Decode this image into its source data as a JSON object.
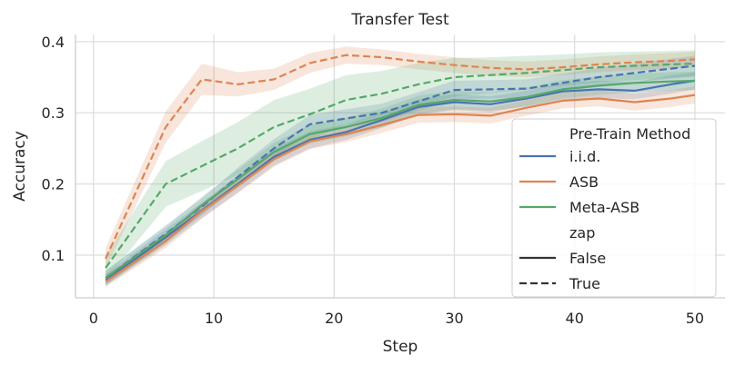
{
  "chart_data": {
    "type": "line",
    "title": "Transfer Test",
    "xlabel": "Step",
    "ylabel": "Accuracy",
    "xlim": [
      -1.5,
      52.5
    ],
    "ylim": [
      0.04,
      0.41
    ],
    "xticks": [
      0,
      10,
      20,
      30,
      40,
      50
    ],
    "yticks": [
      0.1,
      0.2,
      0.3,
      0.4
    ],
    "xtick_labels": [
      "0",
      "10",
      "20",
      "30",
      "40",
      "50"
    ],
    "ytick_labels": [
      "0.1",
      "0.2",
      "0.3",
      "0.4"
    ],
    "grid": true,
    "legend_placement": "center-right",
    "legend": {
      "hue_title": "Pre-Train Method",
      "style_title": "zap",
      "hue_entries": [
        "i.i.d.",
        "ASB",
        "Meta-ASB"
      ],
      "style_entries": [
        "False",
        "True"
      ]
    },
    "x": [
      1,
      6,
      9,
      12,
      15,
      18,
      21,
      24,
      27,
      30,
      33,
      36,
      39,
      42,
      45,
      48,
      50
    ],
    "series": [
      {
        "name": "i.i.d.",
        "zap": "False",
        "color": "#4c72b0",
        "dash": false,
        "values": [
          0.065,
          0.125,
          0.163,
          0.2,
          0.238,
          0.262,
          0.273,
          0.29,
          0.308,
          0.315,
          0.312,
          0.32,
          0.33,
          0.333,
          0.331,
          0.34,
          0.345
        ],
        "lower": [
          0.057,
          0.114,
          0.152,
          0.188,
          0.226,
          0.25,
          0.262,
          0.279,
          0.297,
          0.304,
          0.301,
          0.309,
          0.318,
          0.321,
          0.319,
          0.327,
          0.333
        ],
        "upper": [
          0.073,
          0.136,
          0.174,
          0.212,
          0.25,
          0.274,
          0.284,
          0.301,
          0.319,
          0.326,
          0.323,
          0.331,
          0.342,
          0.345,
          0.343,
          0.353,
          0.357
        ]
      },
      {
        "name": "i.i.d.",
        "zap": "True",
        "color": "#4c72b0",
        "dash": true,
        "values": [
          0.068,
          0.13,
          0.168,
          0.21,
          0.25,
          0.284,
          0.292,
          0.3,
          0.316,
          0.332,
          0.333,
          0.334,
          0.342,
          0.35,
          0.356,
          0.362,
          0.366
        ],
        "lower": [
          0.058,
          0.118,
          0.156,
          0.197,
          0.237,
          0.271,
          0.279,
          0.287,
          0.303,
          0.319,
          0.32,
          0.321,
          0.329,
          0.337,
          0.343,
          0.348,
          0.352
        ],
        "upper": [
          0.078,
          0.142,
          0.18,
          0.223,
          0.263,
          0.297,
          0.305,
          0.313,
          0.329,
          0.345,
          0.346,
          0.347,
          0.355,
          0.363,
          0.369,
          0.376,
          0.38
        ]
      },
      {
        "name": "ASB",
        "zap": "False",
        "color": "#dd8452",
        "dash": false,
        "values": [
          0.063,
          0.12,
          0.162,
          0.198,
          0.235,
          0.26,
          0.27,
          0.283,
          0.297,
          0.298,
          0.296,
          0.307,
          0.317,
          0.32,
          0.315,
          0.32,
          0.325
        ],
        "lower": [
          0.055,
          0.11,
          0.151,
          0.187,
          0.224,
          0.249,
          0.259,
          0.272,
          0.286,
          0.287,
          0.285,
          0.296,
          0.306,
          0.309,
          0.303,
          0.308,
          0.313
        ],
        "upper": [
          0.071,
          0.13,
          0.173,
          0.209,
          0.246,
          0.271,
          0.281,
          0.294,
          0.308,
          0.309,
          0.307,
          0.318,
          0.328,
          0.331,
          0.327,
          0.332,
          0.337
        ]
      },
      {
        "name": "ASB",
        "zap": "True",
        "color": "#dd8452",
        "dash": true,
        "values": [
          0.095,
          0.28,
          0.347,
          0.34,
          0.347,
          0.37,
          0.381,
          0.378,
          0.372,
          0.367,
          0.363,
          0.361,
          0.364,
          0.368,
          0.371,
          0.373,
          0.375
        ],
        "lower": [
          0.08,
          0.258,
          0.325,
          0.323,
          0.332,
          0.356,
          0.369,
          0.367,
          0.361,
          0.356,
          0.352,
          0.35,
          0.353,
          0.357,
          0.36,
          0.362,
          0.364
        ],
        "upper": [
          0.11,
          0.302,
          0.369,
          0.357,
          0.362,
          0.384,
          0.393,
          0.389,
          0.383,
          0.378,
          0.374,
          0.372,
          0.375,
          0.379,
          0.382,
          0.384,
          0.386
        ]
      },
      {
        "name": "Meta-ASB",
        "zap": "False",
        "color": "#55a868",
        "dash": false,
        "values": [
          0.068,
          0.128,
          0.17,
          0.207,
          0.245,
          0.27,
          0.28,
          0.293,
          0.311,
          0.318,
          0.316,
          0.322,
          0.333,
          0.338,
          0.342,
          0.344,
          0.345
        ],
        "lower": [
          0.058,
          0.116,
          0.158,
          0.194,
          0.232,
          0.257,
          0.267,
          0.28,
          0.298,
          0.305,
          0.303,
          0.309,
          0.32,
          0.325,
          0.329,
          0.331,
          0.332
        ],
        "upper": [
          0.078,
          0.14,
          0.182,
          0.22,
          0.258,
          0.283,
          0.293,
          0.306,
          0.324,
          0.331,
          0.329,
          0.335,
          0.346,
          0.351,
          0.355,
          0.357,
          0.358
        ]
      },
      {
        "name": "Meta-ASB",
        "zap": "True",
        "color": "#55a868",
        "dash": true,
        "values": [
          0.082,
          0.2,
          0.225,
          0.25,
          0.28,
          0.298,
          0.318,
          0.327,
          0.34,
          0.35,
          0.353,
          0.356,
          0.36,
          0.364,
          0.366,
          0.368,
          0.369
        ],
        "lower": [
          0.065,
          0.168,
          0.19,
          0.213,
          0.242,
          0.262,
          0.283,
          0.295,
          0.31,
          0.323,
          0.328,
          0.332,
          0.338,
          0.343,
          0.346,
          0.349,
          0.35
        ],
        "upper": [
          0.099,
          0.232,
          0.26,
          0.287,
          0.318,
          0.334,
          0.353,
          0.359,
          0.37,
          0.377,
          0.378,
          0.38,
          0.382,
          0.385,
          0.386,
          0.387,
          0.388
        ]
      }
    ]
  }
}
